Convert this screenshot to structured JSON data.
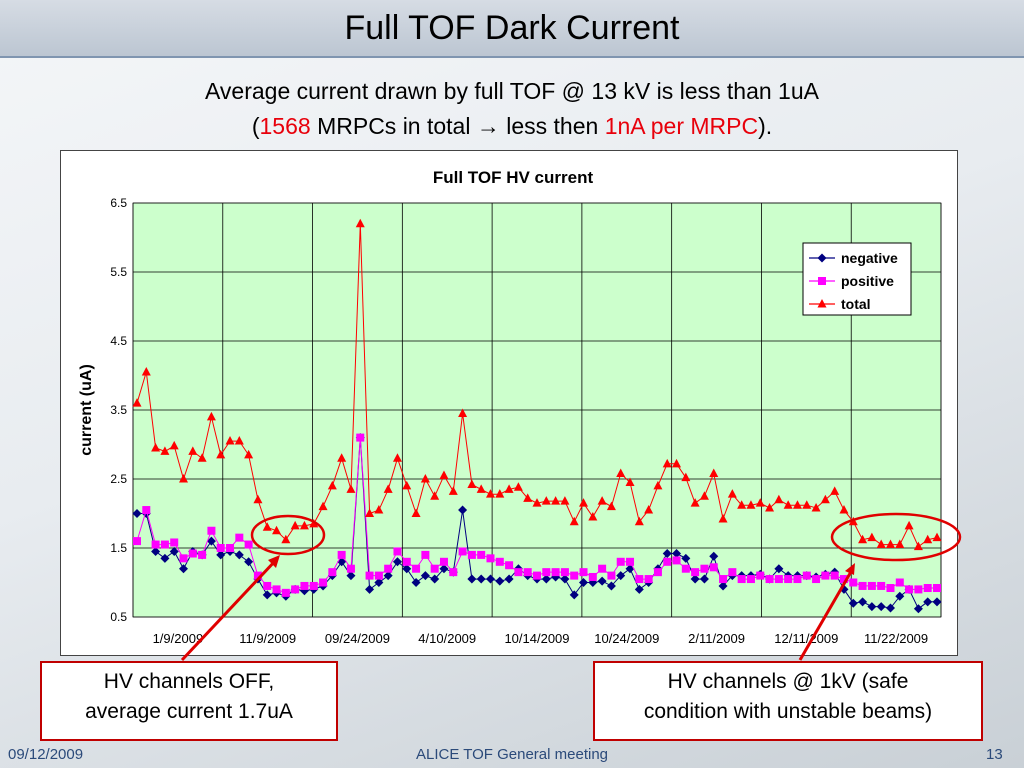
{
  "slide": {
    "title": "Full TOF Dark Current",
    "line1": "Average current drawn by full TOF @ 13 kV is less than 1uA",
    "line2_open": "(",
    "line2_count": "1568",
    "line2_mid": " MRPCs in total ",
    "line2_arrow": "→",
    "line2_after": " less then ",
    "line2_red": "1nA per MRPC",
    "line2_close": ").",
    "callout_left_line1": "HV channels OFF,",
    "callout_left_line2": "average current 1.7uA",
    "callout_right_line1": "HV channels @ 1kV (safe",
    "callout_right_line2": "condition with unstable beams)",
    "footer_date": "09/12/2009",
    "footer_meeting": "ALICE TOF General meeting",
    "footer_page": "13"
  },
  "colors": {
    "negative": "#000080",
    "positive": "#ff00ff",
    "total": "#ff0000",
    "plot_bg": "#ccffcc",
    "callout_border": "#c00000"
  },
  "chart_data": {
    "type": "line",
    "title": "Full TOF HV current",
    "xlabel": "",
    "ylabel": "current (uA)",
    "ylim": [
      0.5,
      6.5
    ],
    "yticks": [
      "6.5",
      "5.5",
      "4.5",
      "3.5",
      "2.5",
      "1.5",
      "0.5"
    ],
    "xtick_labels": [
      "1/9/2009",
      "11/9/2009",
      "09/24/2009",
      "4/10/2009",
      "10/14/2009",
      "10/24/2009",
      "2/11/2009",
      "12/11/2009",
      "11/22/2009"
    ],
    "grid": true,
    "legend": "top-right",
    "series": [
      {
        "name": "negative",
        "marker": "diamond",
        "values": [
          2.0,
          2.0,
          1.45,
          1.35,
          1.45,
          1.2,
          1.45,
          1.4,
          1.6,
          1.4,
          1.45,
          1.4,
          1.3,
          1.05,
          0.82,
          0.85,
          0.8,
          0.9,
          0.88,
          0.9,
          0.95,
          1.1,
          1.3,
          1.1,
          3.1,
          0.9,
          1.0,
          1.1,
          1.3,
          1.2,
          1.0,
          1.1,
          1.05,
          1.2,
          1.15,
          2.05,
          1.05,
          1.05,
          1.05,
          1.02,
          1.05,
          1.2,
          1.1,
          1.05,
          1.05,
          1.08,
          1.05,
          0.82,
          1.0,
          1.0,
          1.02,
          0.95,
          1.1,
          1.2,
          0.9,
          1.0,
          1.2,
          1.42,
          1.42,
          1.35,
          1.05,
          1.05,
          1.38,
          0.95,
          1.1,
          1.1,
          1.1,
          1.12,
          1.05,
          1.2,
          1.1,
          1.1,
          1.1,
          1.08,
          1.12,
          1.15,
          0.9,
          0.7,
          0.72,
          0.65,
          0.65,
          0.63,
          0.8,
          0.9,
          0.62,
          0.72,
          0.72
        ]
      },
      {
        "name": "positive",
        "marker": "square",
        "values": [
          1.6,
          2.05,
          1.55,
          1.55,
          1.58,
          1.35,
          1.42,
          1.4,
          1.75,
          1.5,
          1.5,
          1.65,
          1.55,
          1.1,
          0.95,
          0.9,
          0.85,
          0.9,
          0.95,
          0.95,
          1.0,
          1.15,
          1.4,
          1.2,
          3.1,
          1.1,
          1.1,
          1.2,
          1.45,
          1.3,
          1.2,
          1.4,
          1.2,
          1.3,
          1.15,
          1.45,
          1.4,
          1.4,
          1.35,
          1.3,
          1.25,
          1.15,
          1.15,
          1.1,
          1.15,
          1.15,
          1.15,
          1.1,
          1.15,
          1.08,
          1.2,
          1.1,
          1.3,
          1.3,
          1.05,
          1.05,
          1.15,
          1.3,
          1.32,
          1.2,
          1.15,
          1.2,
          1.22,
          1.05,
          1.15,
          1.05,
          1.05,
          1.1,
          1.05,
          1.05,
          1.05,
          1.05,
          1.1,
          1.05,
          1.1,
          1.1,
          1.05,
          1.0,
          0.95,
          0.95,
          0.95,
          0.92,
          1.0,
          0.9,
          0.9,
          0.92,
          0.92
        ]
      },
      {
        "name": "total",
        "marker": "triangle",
        "values": [
          3.6,
          4.05,
          2.95,
          2.9,
          2.98,
          2.5,
          2.9,
          2.8,
          3.4,
          2.85,
          3.05,
          3.05,
          2.85,
          2.2,
          1.8,
          1.75,
          1.62,
          1.82,
          1.82,
          1.85,
          2.1,
          2.4,
          2.8,
          2.35,
          6.2,
          2.0,
          2.05,
          2.35,
          2.8,
          2.4,
          2.0,
          2.5,
          2.25,
          2.55,
          2.32,
          3.45,
          2.42,
          2.35,
          2.28,
          2.28,
          2.35,
          2.38,
          2.22,
          2.15,
          2.18,
          2.18,
          2.18,
          1.88,
          2.15,
          1.95,
          2.18,
          2.1,
          2.58,
          2.45,
          1.88,
          2.05,
          2.4,
          2.72,
          2.72,
          2.52,
          2.15,
          2.25,
          2.58,
          1.92,
          2.28,
          2.12,
          2.12,
          2.15,
          2.08,
          2.2,
          2.12,
          2.12,
          2.12,
          2.08,
          2.2,
          2.32,
          2.05,
          1.88,
          1.62,
          1.65,
          1.55,
          1.55,
          1.55,
          1.82,
          1.52,
          1.62,
          1.65
        ]
      }
    ]
  }
}
